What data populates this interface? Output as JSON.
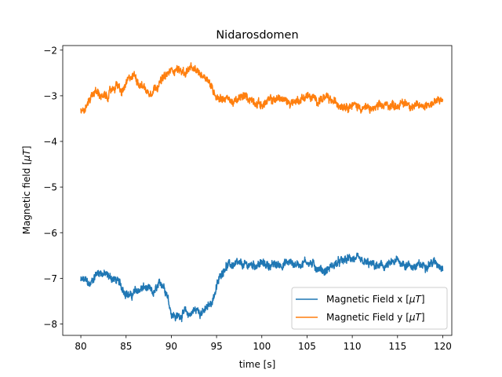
{
  "chart_data": {
    "type": "line",
    "title": "Nidarosdomen",
    "xlabel": "time [s]",
    "ylabel": "Magnetic field [",
    "ylabel_mu": "μT",
    "ylabel_close": "]",
    "xlim": [
      78.0,
      121.0
    ],
    "ylim": [
      -8.25,
      -1.9
    ],
    "xticks": [
      80,
      85,
      90,
      95,
      100,
      105,
      110,
      115,
      120
    ],
    "yticks": [
      -8,
      -7,
      -6,
      -5,
      -4,
      -3,
      -2
    ],
    "ytick_labels": [
      "−8",
      "−7",
      "−6",
      "−5",
      "−4",
      "−3",
      "−2"
    ],
    "grid": false,
    "legend_position": "lower-right",
    "series": [
      {
        "name": "Magnetic Field x [",
        "name_mu": "μT",
        "name_close": "]",
        "color": "#1f77b4",
        "noise": 0.08,
        "x": [
          80,
          80.5,
          81,
          81.5,
          82,
          82.5,
          83,
          83.5,
          84,
          84.5,
          85,
          85.5,
          86,
          86.5,
          87,
          87.5,
          88,
          88.5,
          89,
          89.5,
          90,
          90.5,
          91,
          91.5,
          92,
          92.5,
          93,
          93.5,
          94,
          94.5,
          95,
          95.5,
          96,
          97,
          98,
          99,
          100,
          101,
          102,
          103,
          104,
          105,
          106,
          107,
          108,
          109,
          110,
          111,
          112,
          113,
          114,
          115,
          116,
          117,
          118,
          119,
          120
        ],
        "values": [
          -7.05,
          -7.05,
          -7.15,
          -6.95,
          -6.85,
          -6.9,
          -6.95,
          -7.0,
          -7.05,
          -7.2,
          -7.3,
          -7.4,
          -7.3,
          -7.25,
          -7.2,
          -7.25,
          -7.35,
          -7.2,
          -7.1,
          -7.3,
          -7.75,
          -7.85,
          -7.8,
          -7.75,
          -7.8,
          -7.7,
          -7.7,
          -7.75,
          -7.65,
          -7.5,
          -7.2,
          -6.9,
          -6.72,
          -6.7,
          -6.72,
          -6.7,
          -6.68,
          -6.72,
          -6.7,
          -6.65,
          -6.7,
          -6.62,
          -6.75,
          -6.85,
          -6.7,
          -6.62,
          -6.55,
          -6.65,
          -6.7,
          -6.75,
          -6.72,
          -6.62,
          -6.7,
          -6.75,
          -6.7,
          -6.65,
          -6.72
        ]
      },
      {
        "name": "Magnetic Field y [",
        "name_mu": "μT",
        "name_close": "]",
        "color": "#ff7f0e",
        "noise": 0.08,
        "x": [
          80,
          80.5,
          81,
          81.5,
          82,
          82.5,
          83,
          83.5,
          84,
          84.5,
          85,
          85.5,
          86,
          86.5,
          87,
          87.5,
          88,
          88.5,
          89,
          89.5,
          90,
          90.5,
          91,
          91.5,
          92,
          92.5,
          93,
          93.5,
          94,
          94.5,
          95,
          95.5,
          96,
          97,
          98,
          99,
          100,
          101,
          102,
          103,
          104,
          105,
          106,
          107,
          108,
          109,
          110,
          111,
          112,
          113,
          114,
          115,
          116,
          117,
          118,
          119,
          120
        ],
        "values": [
          -3.35,
          -3.3,
          -3.05,
          -2.9,
          -2.95,
          -3.05,
          -3.0,
          -2.85,
          -2.75,
          -2.95,
          -2.75,
          -2.6,
          -2.55,
          -2.75,
          -2.8,
          -2.95,
          -2.85,
          -2.75,
          -2.65,
          -2.55,
          -2.45,
          -2.4,
          -2.45,
          -2.5,
          -2.4,
          -2.45,
          -2.5,
          -2.55,
          -2.6,
          -2.85,
          -3.0,
          -3.05,
          -3.05,
          -3.15,
          -3.0,
          -3.1,
          -3.2,
          -3.1,
          -3.05,
          -3.15,
          -3.1,
          -3.0,
          -3.1,
          -3.05,
          -3.15,
          -3.2,
          -3.2,
          -3.25,
          -3.3,
          -3.25,
          -3.2,
          -3.2,
          -3.15,
          -3.25,
          -3.2,
          -3.15,
          -3.1
        ]
      }
    ]
  }
}
